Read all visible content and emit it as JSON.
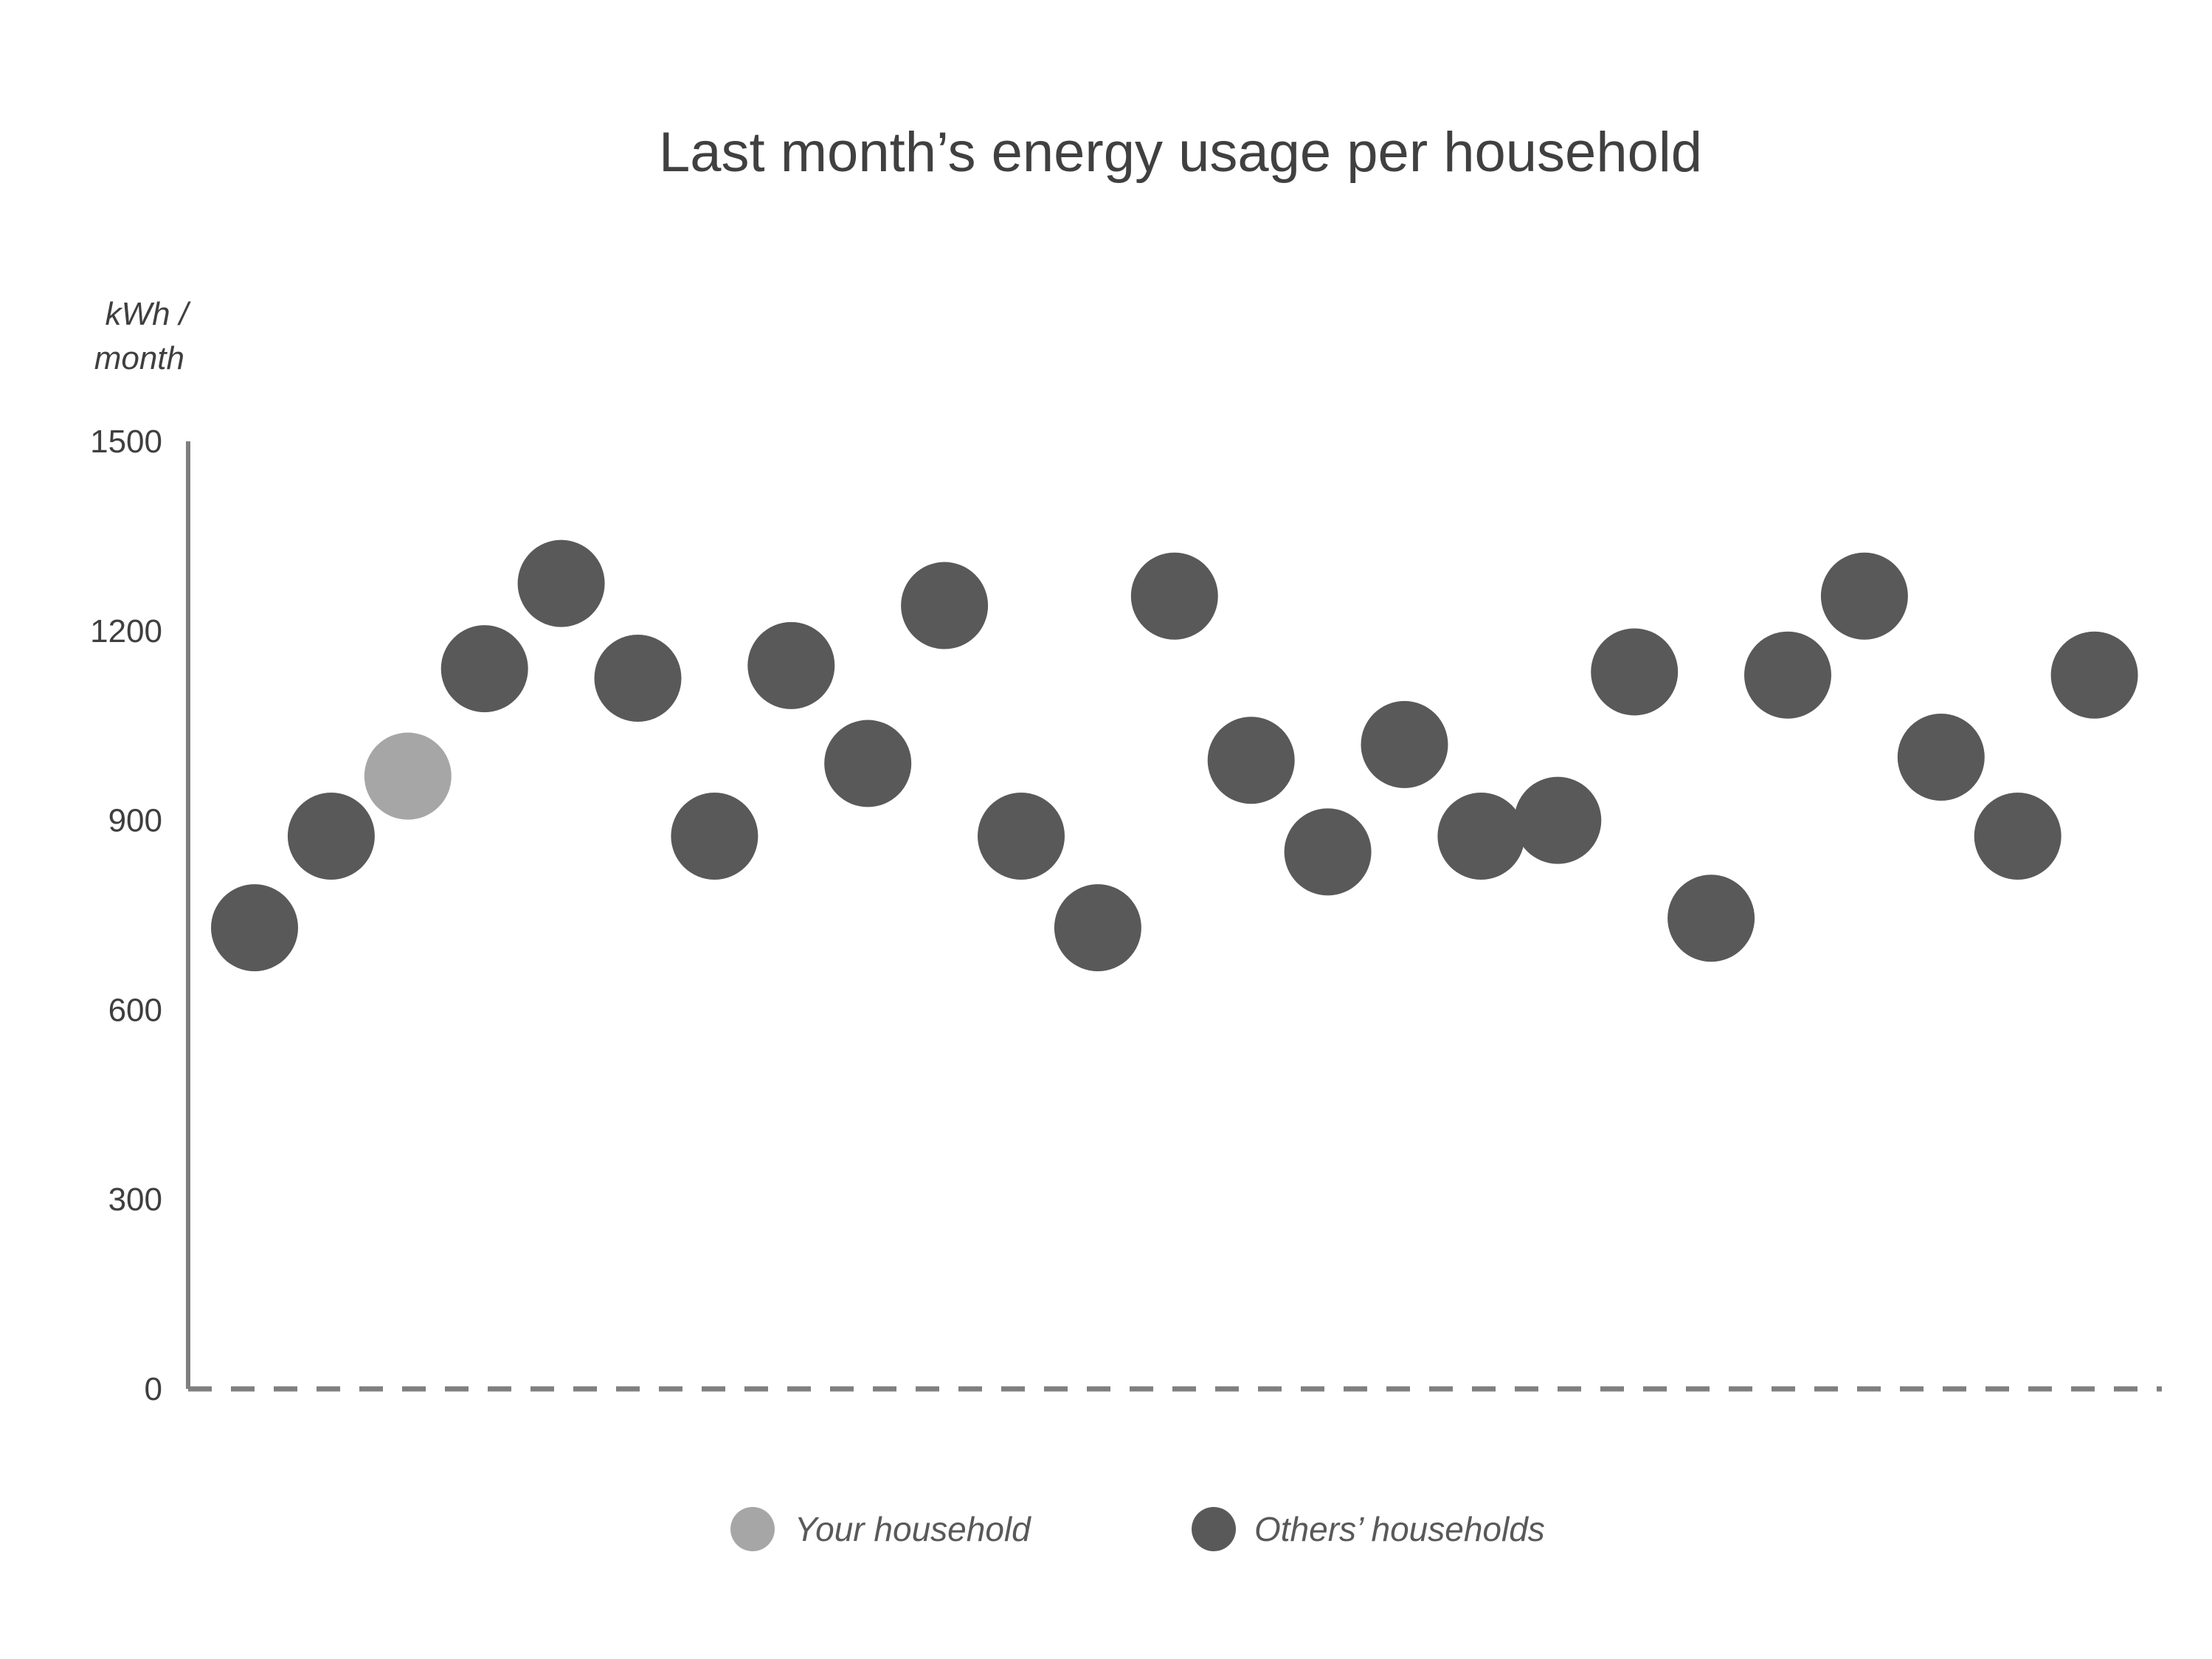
{
  "chart_data": {
    "type": "scatter",
    "title": "Last month’s energy usage per household",
    "ylabel_line1": "kWh /",
    "ylabel_line2": "month",
    "ylim": [
      0,
      1500
    ],
    "yticks": [
      "0",
      "300",
      "600",
      "900",
      "1200",
      "1500"
    ],
    "grid": false,
    "legend_position": "bottom",
    "colors": {
      "your_household": "#a6a6a6",
      "others_households": "#595959"
    },
    "series": [
      {
        "name": "Your household",
        "points": [
          {
            "x": 3,
            "y": 970
          }
        ]
      },
      {
        "name": "Others’ households",
        "points": [
          {
            "x": 1,
            "y": 730
          },
          {
            "x": 2,
            "y": 875
          },
          {
            "x": 4,
            "y": 1140
          },
          {
            "x": 5,
            "y": 1275
          },
          {
            "x": 6,
            "y": 1125
          },
          {
            "x": 7,
            "y": 875
          },
          {
            "x": 8,
            "y": 1145
          },
          {
            "x": 9,
            "y": 990
          },
          {
            "x": 10,
            "y": 1240
          },
          {
            "x": 11,
            "y": 875
          },
          {
            "x": 12,
            "y": 730
          },
          {
            "x": 13,
            "y": 1255
          },
          {
            "x": 14,
            "y": 995
          },
          {
            "x": 15,
            "y": 850
          },
          {
            "x": 16,
            "y": 1020
          },
          {
            "x": 17,
            "y": 875
          },
          {
            "x": 18,
            "y": 900
          },
          {
            "x": 19,
            "y": 1135
          },
          {
            "x": 20,
            "y": 745
          },
          {
            "x": 21,
            "y": 1130
          },
          {
            "x": 22,
            "y": 1255
          },
          {
            "x": 23,
            "y": 1000
          },
          {
            "x": 24,
            "y": 875
          },
          {
            "x": 25,
            "y": 1130
          }
        ]
      }
    ],
    "legend": [
      {
        "label": "Your household",
        "color": "#a6a6a6"
      },
      {
        "label": "Others’ households",
        "color": "#595959"
      }
    ]
  }
}
